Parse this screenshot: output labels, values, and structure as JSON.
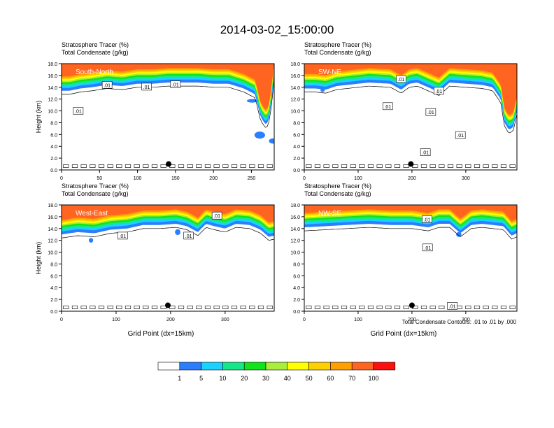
{
  "title": "2014-03-02_15:00:00",
  "panel_header": {
    "line1": "Stratosphere Tracer   (%)",
    "line2": "Total Condensate   (g/kg)"
  },
  "footer_note": "Total Condensate Contours: .01 to .01 by .000",
  "colors": {
    "levels": [
      "#ffffff",
      "#2b7fff",
      "#19d2ff",
      "#16e88a",
      "#12e41a",
      "#a8ee3a",
      "#ffff00",
      "#ffd000",
      "#ffa000",
      "#ff6420",
      "#ff1010"
    ],
    "contour": "#000000",
    "label_text": "#ffffff"
  },
  "chart_data": [
    {
      "type": "heatmap",
      "panel": "South-North",
      "label": "South-North",
      "ylabel": "Height (km)",
      "xlabel": "",
      "xlim": [
        0,
        280
      ],
      "ylim": [
        0,
        18
      ],
      "xticks": [
        0,
        50,
        100,
        150,
        200,
        250
      ],
      "yticks": [
        0.0,
        2.0,
        4.0,
        6.0,
        8.0,
        10.0,
        12.0,
        14.0,
        16.0,
        18.0
      ],
      "tracer_profile": {
        "x": [
          0,
          10,
          25,
          40,
          60,
          80,
          100,
          120,
          140,
          160,
          180,
          200,
          220,
          240,
          255,
          262,
          268,
          272,
          276,
          280
        ],
        "h": [
          13.4,
          13.4,
          13.8,
          14.0,
          14.4,
          14.2,
          14.6,
          14.6,
          14.8,
          14.8,
          14.8,
          14.6,
          14.6,
          13.8,
          12.8,
          9.0,
          7.8,
          8.0,
          11.0,
          16.0
        ]
      },
      "blue_blobs": [
        {
          "x": 285,
          "y": 4.9,
          "w": 12,
          "h": 0.9
        },
        {
          "x": 268,
          "y": 5.9,
          "w": 14,
          "h": 1.2
        },
        {
          "x": 258,
          "y": 11.7,
          "w": 14,
          "h": 0.6
        }
      ],
      "contour_labels": [
        {
          "x": 22,
          "y": 10.0,
          "text": ".01"
        },
        {
          "x": 60,
          "y": 14.4,
          "text": ".01"
        },
        {
          "x": 112,
          "y": 14.1,
          "text": ".01"
        },
        {
          "x": 150,
          "y": 14.5,
          "text": ".01"
        }
      ],
      "marker": {
        "x": 141,
        "y": 1.0
      }
    },
    {
      "type": "heatmap",
      "panel": "SW-NE",
      "label": "SW-NE",
      "ylabel": "",
      "xlabel": "",
      "xlim": [
        0,
        395
      ],
      "ylim": [
        0,
        18
      ],
      "xticks": [
        0,
        100,
        200,
        300
      ],
      "yticks": [
        0.0,
        2.0,
        4.0,
        6.0,
        8.0,
        10.0,
        12.0,
        14.0,
        16.0,
        18.0
      ],
      "tracer_profile": {
        "x": [
          0,
          20,
          40,
          60,
          80,
          120,
          160,
          180,
          195,
          210,
          230,
          250,
          270,
          300,
          330,
          350,
          365,
          372,
          380,
          388,
          395
        ],
        "h": [
          13.8,
          13.8,
          13.6,
          14.2,
          14.4,
          14.8,
          14.6,
          13.6,
          14.6,
          14.8,
          14.0,
          13.2,
          14.8,
          14.6,
          14.4,
          14.0,
          12.0,
          8.0,
          6.8,
          7.2,
          10.0
        ]
      },
      "blue_blobs": [
        {
          "x": 38,
          "y": 13.5,
          "w": 8,
          "h": 0.6
        }
      ],
      "contour_labels": [
        {
          "x": 180,
          "y": 15.4,
          "text": ".01"
        },
        {
          "x": 155,
          "y": 10.8,
          "text": ".01"
        },
        {
          "x": 250,
          "y": 13.4,
          "text": ".01"
        },
        {
          "x": 235,
          "y": 9.8,
          "text": ".01"
        },
        {
          "x": 290,
          "y": 5.9,
          "text": ".01"
        },
        {
          "x": 225,
          "y": 3.0,
          "text": ".01"
        }
      ],
      "marker": {
        "x": 198,
        "y": 1.0
      }
    },
    {
      "type": "heatmap",
      "panel": "West-East",
      "label": "West-East",
      "ylabel": "Height (km)",
      "xlabel": "Grid Point (dx=15km)",
      "xlim": [
        0,
        390
      ],
      "ylim": [
        0,
        18
      ],
      "xticks": [
        0,
        100,
        200,
        300
      ],
      "yticks": [
        0.0,
        2.0,
        4.0,
        6.0,
        8.0,
        10.0,
        12.0,
        14.0,
        16.0,
        18.0
      ],
      "tracer_profile": {
        "x": [
          0,
          30,
          60,
          90,
          120,
          150,
          180,
          210,
          230,
          250,
          265,
          280,
          300,
          320,
          345,
          365,
          380,
          390
        ],
        "h": [
          13.0,
          13.4,
          13.2,
          13.8,
          14.0,
          14.6,
          14.6,
          14.8,
          14.4,
          13.4,
          14.8,
          14.4,
          14.0,
          14.8,
          14.6,
          13.8,
          12.6,
          12.8
        ]
      },
      "blue_blobs": [
        {
          "x": 58,
          "y": 12.0,
          "w": 8,
          "h": 0.8
        },
        {
          "x": 218,
          "y": 13.4,
          "w": 10,
          "h": 1.0
        }
      ],
      "contour_labels": [
        {
          "x": 112,
          "y": 12.8,
          "text": ".01"
        },
        {
          "x": 233,
          "y": 12.8,
          "text": ".01"
        },
        {
          "x": 285,
          "y": 16.2,
          "text": ".01"
        }
      ],
      "marker": {
        "x": 195,
        "y": 1.0
      }
    },
    {
      "type": "heatmap",
      "panel": "NW-SE",
      "label": "NW-SE",
      "ylabel": "",
      "xlabel": "Grid Point (dx=15km)",
      "xlim": [
        0,
        395
      ],
      "ylim": [
        0,
        18
      ],
      "xticks": [
        0,
        100,
        200,
        300
      ],
      "yticks": [
        0.0,
        2.0,
        4.0,
        6.0,
        8.0,
        10.0,
        12.0,
        14.0,
        16.0,
        18.0
      ],
      "tracer_profile": {
        "x": [
          0,
          40,
          80,
          120,
          160,
          200,
          230,
          250,
          270,
          290,
          310,
          330,
          350,
          370,
          385,
          395
        ],
        "h": [
          14.2,
          14.4,
          14.6,
          14.8,
          14.6,
          14.6,
          14.2,
          14.8,
          14.8,
          13.2,
          14.6,
          14.8,
          14.6,
          14.4,
          12.8,
          13.2
        ]
      },
      "blue_blobs": [
        {
          "x": 292,
          "y": 13.0,
          "w": 10,
          "h": 0.8
        }
      ],
      "contour_labels": [
        {
          "x": 228,
          "y": 15.6,
          "text": ".01"
        },
        {
          "x": 229,
          "y": 10.8,
          "text": ".01"
        },
        {
          "x": 275,
          "y": 0.9,
          "text": ".01"
        }
      ],
      "marker": {
        "x": 200,
        "y": 1.0
      }
    }
  ],
  "colorbar": {
    "labels": [
      "1",
      "5",
      "10",
      "20",
      "30",
      "40",
      "50",
      "60",
      "70",
      "100"
    ]
  }
}
